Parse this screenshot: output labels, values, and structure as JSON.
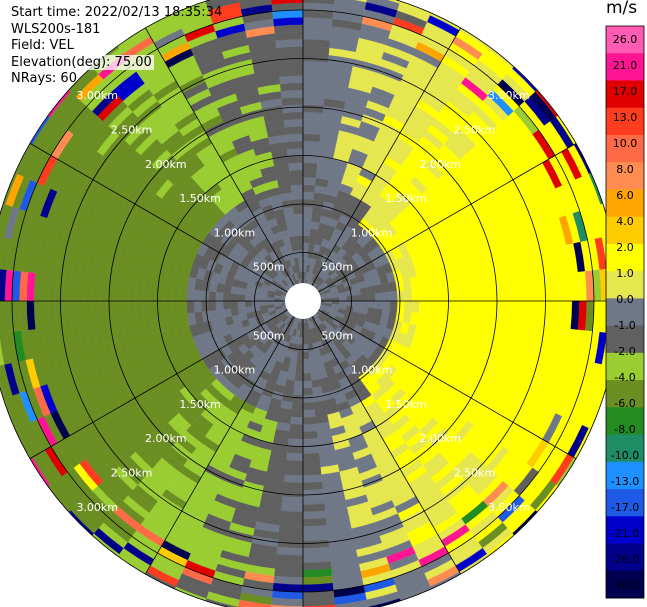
{
  "header": {
    "start_time": "Start time: 2022/02/13 18:35:34",
    "instrument": "WLS200s-181",
    "field": "Field: VEL",
    "elevation": "Elevation(deg): 75.00",
    "nrays": "NRays: 60"
  },
  "colorbar": {
    "unit": "m/s",
    "tick_labels": [
      "26.0",
      "21.0",
      "17.0",
      "13.0",
      "10.0",
      "8.0",
      "6.0",
      "4.0",
      "2.0",
      "1.0",
      "0.0",
      "-1.0",
      "-2.0",
      "-4.0",
      "-6.0",
      "-8.0",
      "-10.0",
      "-13.0",
      "-17.0",
      "-21.0",
      "-26.0",
      "-30.0"
    ],
    "colors": [
      "#ff5ab4",
      "#ff1493",
      "#e00000",
      "#ff3c1e",
      "#ff6a46",
      "#ff8c50",
      "#ffa500",
      "#ffcc00",
      "#ffff00",
      "#e6e64e",
      "#707888",
      "#606060",
      "#9acd32",
      "#6b8e23",
      "#228b22",
      "#1e8c64",
      "#1e90ff",
      "#1e5ae6",
      "#0000cd",
      "#00008b",
      "#000050"
    ]
  },
  "chart_data": {
    "type": "heatmap",
    "subtype": "polar-ppi",
    "field": "VEL",
    "unit": "m/s",
    "n_rays": 60,
    "range_rings_labels": [
      "500m",
      "1.00km",
      "1.50km",
      "2.00km",
      "2.50km",
      "3.00km"
    ],
    "range_rings_km": [
      0.5,
      1.0,
      1.5,
      2.0,
      2.5,
      3.0
    ],
    "max_range_km": 3.25,
    "value_range": [
      -30,
      30
    ],
    "pattern_description_values": {
      "near_range_mean": -0.5,
      "east_sector_mean": 3.0,
      "west_sector_mean": -2.0,
      "outer_edge": "mixed / noisy"
    }
  }
}
